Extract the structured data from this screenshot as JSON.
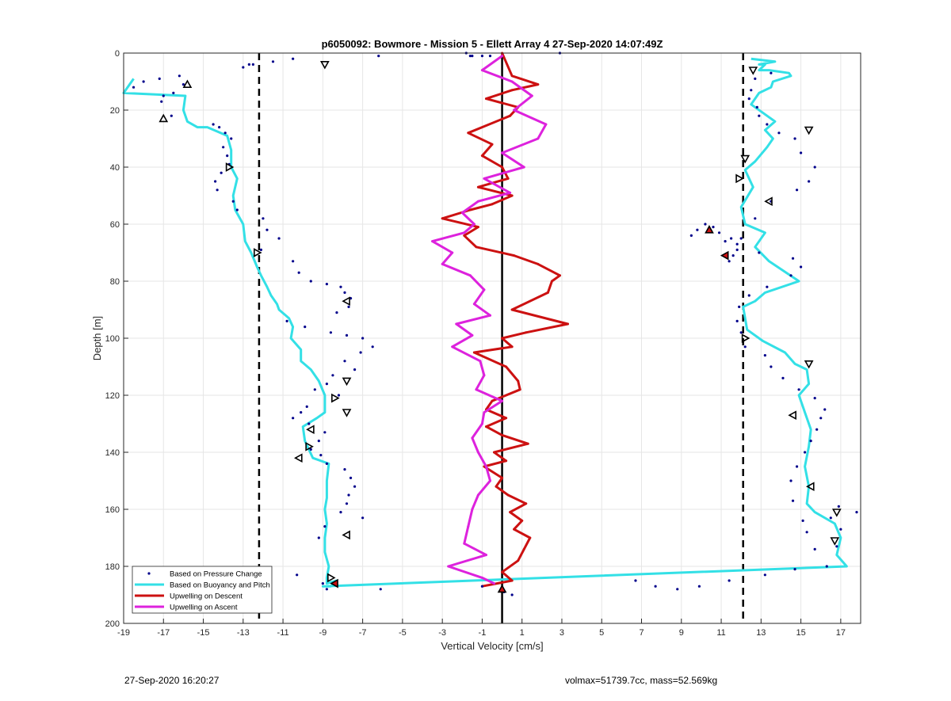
{
  "chart_data": {
    "type": "scatter",
    "title": "p6050092: Bowmore - Mission 5 - Ellett Array 4 27-Sep-2020 14:07:49Z",
    "xlabel": "Vertical Velocity [cm/s]",
    "ylabel": "Depth [m]",
    "xlim": [
      -19,
      18
    ],
    "ylim": [
      0,
      200
    ],
    "y_reversed": true,
    "grid": true,
    "xticks": [
      -19,
      -17,
      -15,
      -13,
      -11,
      -9,
      -7,
      -5,
      -3,
      -1,
      1,
      3,
      5,
      7,
      9,
      11,
      13,
      15,
      17
    ],
    "yticks": [
      0,
      20,
      40,
      60,
      80,
      100,
      120,
      140,
      160,
      180,
      200
    ],
    "legend_position": "bottom-left",
    "legend": [
      {
        "label": "Based on Pressure Change",
        "color": "#00008b",
        "style": "dots"
      },
      {
        "label": "Based on Buoyancy and Pitch",
        "color": "#33e0e6",
        "style": "line"
      },
      {
        "label": "Upwelling on Descent",
        "color": "#cc1111",
        "style": "line"
      },
      {
        "label": "Upwelling on Ascent",
        "color": "#dd22dd",
        "style": "line"
      }
    ],
    "reference_lines": [
      {
        "x": -12.2,
        "style": "dashed"
      },
      {
        "x": 0,
        "style": "solid"
      },
      {
        "x": 12.1,
        "style": "dashed"
      }
    ],
    "series": [
      {
        "name": "Based on Buoyancy and Pitch",
        "color": "#33e0e6",
        "x": [
          -18.5,
          -19.0,
          -15.9,
          -16.0,
          -15.8,
          -15.3,
          -14.8,
          -13.8,
          -13.6,
          -13.6,
          -13.3,
          -13.5,
          -13.4,
          -13.0,
          -12.9,
          -12.6,
          -12.3,
          -12.1,
          -11.8,
          -11.6,
          -11.3,
          -11.2,
          -10.7,
          -10.5,
          -10.6,
          -10.1,
          -10.1,
          -9.6,
          -9.2,
          -8.9,
          -8.9,
          -9.3,
          -10.0,
          -9.9,
          -9.5,
          -8.7,
          -8.8,
          -8.8,
          -8.9,
          -8.8,
          -8.9,
          -8.9,
          -8.7,
          -8.8,
          -8.8,
          -8.3,
          -8.6,
          -9.0,
          17.3,
          16.8,
          17.0,
          16.7,
          15.7,
          15.3,
          15.4,
          15.2,
          15.4,
          15.5,
          15.2,
          14.9,
          15.4,
          15.3,
          14.7,
          14.2,
          13.1,
          12.3,
          12.2,
          12.1,
          12.7,
          13.2,
          14.9,
          13.4,
          12.7,
          13.2,
          12.2,
          12.0,
          12.6,
          12.2,
          12.7,
          13.3,
          13.6,
          13.2,
          13.7,
          13.3,
          12.5,
          12.9,
          13.5,
          13.6,
          14.5,
          14.4,
          13.4,
          12.9,
          13.2,
          12.9,
          13.7,
          12.5
        ],
        "y": [
          9,
          14,
          15,
          20,
          24,
          26,
          26,
          29,
          34,
          40,
          44,
          50,
          55,
          60,
          66,
          70,
          75,
          78,
          82,
          85,
          88,
          90,
          93,
          96,
          100,
          104,
          108,
          111,
          115,
          120,
          126,
          128,
          131,
          136,
          142,
          144,
          150,
          156,
          160,
          165,
          170,
          175,
          180,
          184,
          186,
          185,
          187,
          187,
          180,
          176,
          170,
          165,
          161,
          158,
          152,
          145,
          138,
          132,
          126,
          120,
          116,
          111,
          109,
          105,
          101,
          97,
          93,
          89,
          87,
          84,
          80,
          73,
          68,
          63,
          60,
          54,
          47,
          41,
          38,
          33,
          30,
          27,
          24,
          22,
          18,
          14,
          12,
          10,
          8,
          7,
          6,
          6,
          4,
          4,
          3,
          2
        ]
      },
      {
        "name": "Upwelling on Descent",
        "color": "#cc1111",
        "x": [
          0.0,
          0.5,
          1.8,
          0.5,
          -0.8,
          0.8,
          0.4,
          -1.7,
          -0.5,
          -1.0,
          0.0,
          0.3,
          -1.2,
          0.5,
          -0.5,
          -1.6,
          -3.0,
          -1.2,
          -1.9,
          -1.3,
          0.6,
          1.8,
          2.9,
          2.5,
          2.3,
          0.5,
          3.3,
          1.2,
          0.0,
          0.5,
          -1.4,
          0.2,
          0.8,
          0.9,
          -0.5,
          -0.8,
          0.2,
          -0.8,
          0.0,
          1.3,
          -0.4,
          0.2,
          -0.9,
          0.0,
          -0.3,
          0.3,
          1.2,
          0.4,
          1.0,
          0.6,
          1.4,
          1.1,
          0.8,
          0.0,
          0.5,
          -1.0
        ],
        "y": [
          0,
          8,
          11,
          13,
          16,
          19,
          22,
          28,
          32,
          36,
          40,
          44,
          47,
          50,
          53,
          55,
          58,
          61,
          64,
          68,
          71,
          74,
          78,
          80,
          84,
          90,
          95,
          98,
          100,
          103,
          105,
          110,
          115,
          118,
          122,
          125,
          128,
          131,
          134,
          137,
          140,
          143,
          145,
          149,
          152,
          155,
          158,
          161,
          164,
          167,
          170,
          174,
          178,
          182,
          185,
          187
        ]
      },
      {
        "name": "Upwelling on Ascent",
        "color": "#dd22dd",
        "x": [
          0.0,
          -1.0,
          0.5,
          1.5,
          0.6,
          2.2,
          1.8,
          0.0,
          1.1,
          -0.9,
          0.4,
          -1.2,
          -2.0,
          -1.4,
          -1.9,
          -3.5,
          -2.5,
          -3.0,
          -1.6,
          -0.9,
          -1.4,
          -0.6,
          -2.3,
          -1.5,
          -2.5,
          -1.1,
          -0.9,
          -1.3,
          0.0,
          -0.9,
          -1.0,
          -1.5,
          -1.2,
          -0.8,
          -0.6,
          -1.2,
          -1.5,
          -1.7,
          -1.9,
          -0.8,
          -2.7,
          -1.0,
          -0.4
        ],
        "y": [
          1,
          6,
          10,
          15,
          20,
          25,
          30,
          35,
          40,
          44,
          49,
          52,
          56,
          60,
          63,
          66,
          70,
          74,
          78,
          83,
          88,
          92,
          95,
          99,
          103,
          108,
          113,
          118,
          122,
          126,
          130,
          135,
          140,
          145,
          150,
          155,
          160,
          166,
          172,
          176,
          180,
          184,
          186
        ]
      },
      {
        "name": "Based on Pressure Change",
        "color": "#00008b",
        "x": [
          -18.5,
          -18.0,
          -17.2,
          -16.2,
          -16.0,
          -16.5,
          -17.0,
          -17.1,
          -16.6,
          -14.5,
          -14.2,
          -13.9,
          -13.6,
          -14.0,
          -13.8,
          -13.7,
          -14.1,
          -14.4,
          -14.3,
          -13.5,
          -13.3,
          -12.0,
          -11.8,
          -11.2,
          -12.1,
          -10.5,
          -10.2,
          -9.6,
          -8.8,
          -8.1,
          -7.9,
          -7.6,
          -7.7,
          -8.3,
          -10.8,
          -9.9,
          -8.6,
          -7.8,
          -7.0,
          -6.5,
          -7.1,
          -7.9,
          -7.4,
          -8.5,
          -8.8,
          -9.4,
          -8.2,
          -9.8,
          -10.1,
          -10.5,
          -9.7,
          -8.9,
          -9.2,
          -9.6,
          -9.1,
          -8.8,
          -7.9,
          -7.6,
          -7.4,
          -7.7,
          -7.8,
          -8.1,
          -7.0,
          -8.9,
          -9.2,
          -12.7,
          -13.0,
          -11.5,
          -10.5,
          -6.2,
          -1.8,
          -1.6,
          -1.5,
          -1.0,
          -0.6,
          2.9,
          6.7,
          7.7,
          8.8,
          9.9,
          11.4,
          13.2,
          14.7,
          16.3,
          17.8,
          16.5,
          16.9,
          17.0,
          16.8,
          15.7,
          15.3,
          15.1,
          14.6,
          14.5,
          14.8,
          15.2,
          15.5,
          15.8,
          16.0,
          16.2,
          15.7,
          14.9,
          14.1,
          13.5,
          13.2,
          12.2,
          12.0,
          11.8,
          11.9,
          12.4,
          13.3,
          14.5,
          15.0,
          14.6,
          12.9,
          11.8,
          11.5,
          10.9,
          10.6,
          10.2,
          9.8,
          9.5,
          11.2,
          11.8,
          11.6,
          11.4,
          12.0,
          12.7,
          13.5,
          14.8,
          15.4,
          15.7,
          15.0,
          14.7,
          13.9,
          13.3,
          12.9,
          12.8,
          12.4,
          12.5,
          12.7,
          13.5,
          -12.5,
          -10.3,
          -9.0,
          -8.8,
          -6.1,
          -1.0,
          0.1,
          0.5
        ],
        "y": [
          12,
          10,
          9,
          8,
          11,
          14,
          15,
          17,
          22,
          25,
          26,
          28,
          30,
          33,
          36,
          39,
          42,
          45,
          48,
          52,
          55,
          58,
          62,
          65,
          69,
          73,
          77,
          80,
          81,
          82,
          84,
          86,
          89,
          91,
          94,
          96,
          98,
          99,
          100,
          103,
          105,
          108,
          111,
          113,
          116,
          118,
          120,
          124,
          126,
          128,
          130,
          133,
          136,
          139,
          141,
          144,
          146,
          149,
          152,
          155,
          158,
          161,
          163,
          166,
          170,
          4,
          5,
          3,
          2,
          1,
          0,
          1,
          1,
          1,
          1,
          0,
          185,
          187,
          188,
          187,
          185,
          183,
          181,
          180,
          161,
          163,
          159,
          167,
          173,
          174,
          168,
          164,
          157,
          150,
          145,
          140,
          136,
          132,
          128,
          125,
          121,
          118,
          114,
          110,
          106,
          103,
          98,
          94,
          89,
          85,
          82,
          78,
          75,
          72,
          70,
          67,
          65,
          63,
          61,
          60,
          62,
          64,
          66,
          69,
          71,
          73,
          65,
          58,
          52,
          48,
          45,
          40,
          35,
          30,
          28,
          25,
          22,
          19,
          16,
          13,
          9,
          7,
          4,
          183,
          186,
          188,
          188,
          187,
          189,
          190
        ]
      }
    ],
    "markers": [
      {
        "x": -15.8,
        "y": 11,
        "shape": "triangle-up",
        "fill": "none"
      },
      {
        "x": -17.0,
        "y": 23,
        "shape": "triangle-up",
        "fill": "none"
      },
      {
        "x": -13.7,
        "y": 40,
        "shape": "triangle-right",
        "fill": "none"
      },
      {
        "x": -12.3,
        "y": 70,
        "shape": "triangle-right",
        "fill": "none"
      },
      {
        "x": -8.9,
        "y": 4,
        "shape": "triangle-down",
        "fill": "none"
      },
      {
        "x": -7.8,
        "y": 87,
        "shape": "triangle-left",
        "fill": "none"
      },
      {
        "x": -7.8,
        "y": 115,
        "shape": "triangle-down",
        "fill": "none"
      },
      {
        "x": -8.4,
        "y": 121,
        "shape": "triangle-right",
        "fill": "none"
      },
      {
        "x": -7.8,
        "y": 126,
        "shape": "triangle-down",
        "fill": "none"
      },
      {
        "x": -9.6,
        "y": 132,
        "shape": "triangle-left",
        "fill": "none"
      },
      {
        "x": -9.7,
        "y": 138,
        "shape": "triangle-right",
        "fill": "none"
      },
      {
        "x": -10.2,
        "y": 142,
        "shape": "triangle-left",
        "fill": "none"
      },
      {
        "x": -7.8,
        "y": 169,
        "shape": "triangle-left",
        "fill": "none"
      },
      {
        "x": -8.6,
        "y": 184,
        "shape": "triangle-right",
        "fill": "none"
      },
      {
        "x": -8.4,
        "y": 186,
        "shape": "triangle-left",
        "fill": "red"
      },
      {
        "x": 0.0,
        "y": 188,
        "shape": "triangle-up",
        "fill": "red"
      },
      {
        "x": 12.6,
        "y": 6,
        "shape": "triangle-down",
        "fill": "none"
      },
      {
        "x": 15.4,
        "y": 27,
        "shape": "triangle-down",
        "fill": "none"
      },
      {
        "x": 12.2,
        "y": 37,
        "shape": "triangle-down",
        "fill": "none"
      },
      {
        "x": 11.9,
        "y": 44,
        "shape": "triangle-right",
        "fill": "none"
      },
      {
        "x": 13.4,
        "y": 52,
        "shape": "triangle-left",
        "fill": "none"
      },
      {
        "x": 10.4,
        "y": 62,
        "shape": "triangle-up",
        "fill": "red"
      },
      {
        "x": 11.2,
        "y": 71,
        "shape": "triangle-left",
        "fill": "red"
      },
      {
        "x": 12.2,
        "y": 100,
        "shape": "triangle-right",
        "fill": "none"
      },
      {
        "x": 15.4,
        "y": 109,
        "shape": "triangle-down",
        "fill": "none"
      },
      {
        "x": 14.6,
        "y": 127,
        "shape": "triangle-left",
        "fill": "none"
      },
      {
        "x": 15.5,
        "y": 152,
        "shape": "triangle-left",
        "fill": "none"
      },
      {
        "x": 16.8,
        "y": 161,
        "shape": "triangle-down",
        "fill": "none"
      },
      {
        "x": 16.7,
        "y": 171,
        "shape": "triangle-down",
        "fill": "none"
      }
    ]
  },
  "footer": {
    "left": "27-Sep-2020 16:20:27",
    "right": "volmax=51739.7cc, mass=52.569kg"
  }
}
